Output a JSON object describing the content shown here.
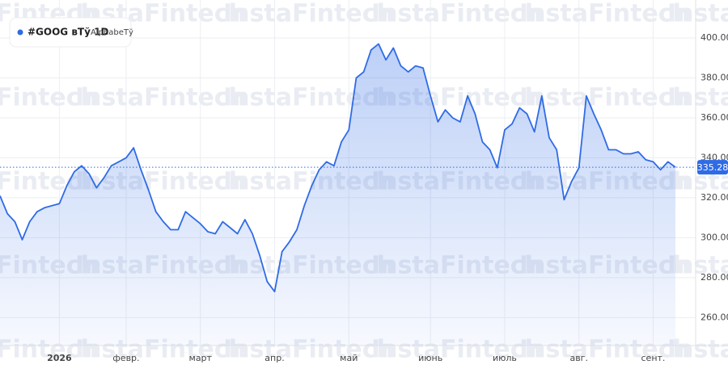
{
  "chart_data": {
    "type": "area",
    "legend": {
      "symbol": "#GOOG вТў 1D",
      "name": "AlphabeТў"
    },
    "watermark": "InstaFintech",
    "color": "#2f6be6",
    "categories": [
      null,
      null,
      null,
      null,
      null,
      null,
      null,
      null,
      "2026",
      null,
      null,
      null,
      null,
      null,
      null,
      null,
      null,
      "февр.",
      null,
      null,
      null,
      null,
      null,
      null,
      null,
      null,
      null,
      "март",
      null,
      null,
      null,
      null,
      null,
      null,
      null,
      null,
      null,
      "апр.",
      null,
      null,
      null,
      null,
      null,
      null,
      null,
      null,
      null,
      "май",
      null,
      null,
      null,
      null,
      null,
      null,
      null,
      null,
      null,
      null,
      "июнь",
      null,
      null,
      null,
      null,
      null,
      null,
      null,
      null,
      null,
      "июль",
      null,
      null,
      null,
      null,
      null,
      null,
      null,
      null,
      null,
      "авг.",
      null,
      null,
      null,
      null,
      null,
      null,
      null,
      null,
      null,
      "сент.",
      null,
      null,
      null
    ],
    "values": [
      321,
      312,
      308,
      299,
      308,
      313,
      315,
      316,
      317,
      326,
      333,
      336,
      332,
      325,
      330,
      336,
      338,
      340,
      345,
      334,
      324,
      313,
      308,
      304,
      304,
      313,
      310,
      307,
      303,
      302,
      308,
      305,
      302,
      309,
      302,
      291,
      278,
      273,
      293,
      298,
      304,
      316,
      326,
      334,
      338,
      336,
      348,
      354,
      380,
      383,
      394,
      397,
      389,
      395,
      386,
      383,
      386,
      385,
      371,
      358,
      364,
      360,
      358,
      371,
      362,
      348,
      344,
      335,
      354,
      357,
      365,
      362,
      353,
      371,
      350,
      344,
      319,
      328,
      335,
      371,
      362,
      354,
      344,
      344,
      342,
      342,
      343,
      339,
      338,
      334,
      338,
      335.28
    ],
    "last_price": {
      "value": 335.28,
      "label": "335.28"
    },
    "ylim": [
      246,
      419
    ],
    "yticks": [
      {
        "value": 260,
        "label": "260.00"
      },
      {
        "value": 280,
        "label": "280.00"
      },
      {
        "value": 300,
        "label": "300.00"
      },
      {
        "value": 320,
        "label": "320.00"
      },
      {
        "value": 340,
        "label": "340.00"
      },
      {
        "value": 360,
        "label": "360.00"
      },
      {
        "value": 380,
        "label": "380.00"
      },
      {
        "value": 400,
        "label": "400.00"
      }
    ],
    "grid": true
  }
}
